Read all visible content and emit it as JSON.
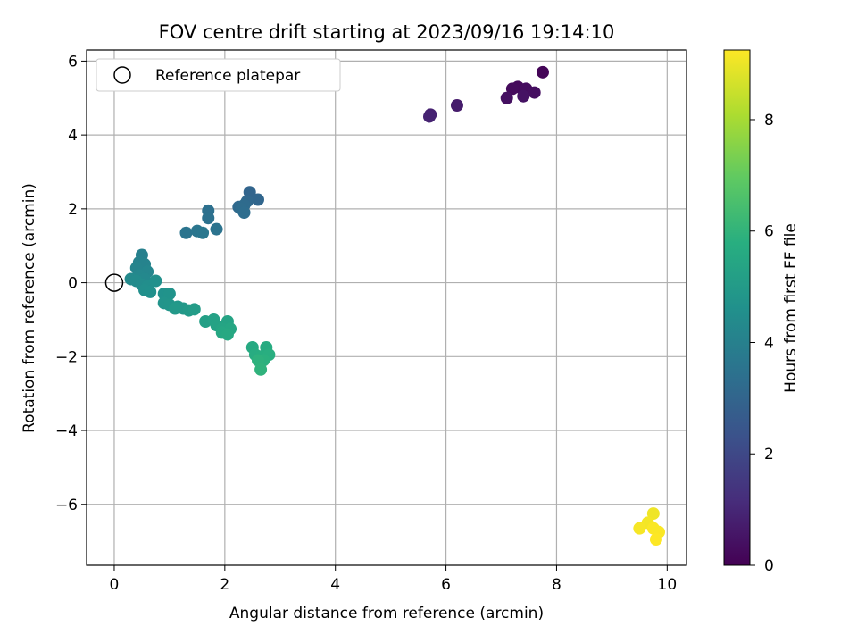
{
  "chart_data": {
    "type": "scatter",
    "title": "FOV centre drift starting at 2023/09/16 19:14:10",
    "xlabel": "Angular distance from reference (arcmin)",
    "ylabel": "Rotation from reference (arcmin)",
    "xlim": [
      -0.5,
      10.35
    ],
    "ylim": [
      -7.65,
      6.3
    ],
    "xticks": [
      0,
      2,
      4,
      6,
      8,
      10
    ],
    "yticks": [
      -6,
      -4,
      -2,
      0,
      2,
      4,
      6
    ],
    "grid": true,
    "colormap": "viridis",
    "colorbar": {
      "label": "Hours from first FF file",
      "range": [
        0,
        9.25
      ],
      "ticks": [
        0,
        2,
        4,
        6,
        8
      ]
    },
    "legend": {
      "placement": "upper-left",
      "entries": [
        "Reference platepar"
      ]
    },
    "reference": {
      "x": 0,
      "y": 0,
      "label": "Reference platepar"
    },
    "points": [
      {
        "x": 7.75,
        "y": 5.7,
        "c": 0.1
      },
      {
        "x": 7.3,
        "y": 5.3,
        "c": 0.2
      },
      {
        "x": 7.2,
        "y": 5.25,
        "c": 0.25
      },
      {
        "x": 7.45,
        "y": 5.25,
        "c": 0.3
      },
      {
        "x": 7.6,
        "y": 5.15,
        "c": 0.35
      },
      {
        "x": 7.1,
        "y": 5.0,
        "c": 0.4
      },
      {
        "x": 7.4,
        "y": 5.05,
        "c": 0.45
      },
      {
        "x": 6.2,
        "y": 4.8,
        "c": 0.7
      },
      {
        "x": 5.72,
        "y": 4.55,
        "c": 0.85
      },
      {
        "x": 5.7,
        "y": 4.5,
        "c": 0.9
      },
      {
        "x": 2.45,
        "y": 2.45,
        "c": 3.0
      },
      {
        "x": 2.6,
        "y": 2.25,
        "c": 3.05
      },
      {
        "x": 2.4,
        "y": 2.2,
        "c": 3.1
      },
      {
        "x": 2.25,
        "y": 2.05,
        "c": 3.15
      },
      {
        "x": 2.35,
        "y": 2.1,
        "c": 3.2
      },
      {
        "x": 2.3,
        "y": 2.0,
        "c": 3.25
      },
      {
        "x": 2.35,
        "y": 1.9,
        "c": 3.3
      },
      {
        "x": 1.7,
        "y": 1.95,
        "c": 3.4
      },
      {
        "x": 1.7,
        "y": 1.75,
        "c": 3.45
      },
      {
        "x": 1.85,
        "y": 1.45,
        "c": 3.5
      },
      {
        "x": 1.3,
        "y": 1.35,
        "c": 3.55
      },
      {
        "x": 1.5,
        "y": 1.4,
        "c": 3.6
      },
      {
        "x": 1.6,
        "y": 1.35,
        "c": 3.65
      },
      {
        "x": 0.5,
        "y": 0.75,
        "c": 4.0
      },
      {
        "x": 0.45,
        "y": 0.55,
        "c": 4.05
      },
      {
        "x": 0.55,
        "y": 0.5,
        "c": 4.1
      },
      {
        "x": 0.4,
        "y": 0.4,
        "c": 4.15
      },
      {
        "x": 0.6,
        "y": 0.3,
        "c": 4.2
      },
      {
        "x": 0.45,
        "y": 0.2,
        "c": 4.25
      },
      {
        "x": 0.55,
        "y": 0.1,
        "c": 4.3
      },
      {
        "x": 0.3,
        "y": 0.1,
        "c": 4.35
      },
      {
        "x": 0.4,
        "y": 0.05,
        "c": 4.4
      },
      {
        "x": 0.5,
        "y": -0.05,
        "c": 4.45
      },
      {
        "x": 0.6,
        "y": -0.1,
        "c": 4.5
      },
      {
        "x": 0.55,
        "y": -0.2,
        "c": 4.55
      },
      {
        "x": 0.65,
        "y": -0.25,
        "c": 4.6
      },
      {
        "x": 0.75,
        "y": 0.05,
        "c": 4.6
      },
      {
        "x": 0.9,
        "y": -0.3,
        "c": 4.65
      },
      {
        "x": 1.0,
        "y": -0.3,
        "c": 4.7
      },
      {
        "x": 0.9,
        "y": -0.55,
        "c": 4.75
      },
      {
        "x": 1.0,
        "y": -0.6,
        "c": 4.8
      },
      {
        "x": 1.15,
        "y": -0.65,
        "c": 4.85
      },
      {
        "x": 1.25,
        "y": -0.7,
        "c": 4.9
      },
      {
        "x": 1.1,
        "y": -0.7,
        "c": 4.95
      },
      {
        "x": 1.35,
        "y": -0.75,
        "c": 5.0
      },
      {
        "x": 1.45,
        "y": -0.72,
        "c": 5.05
      },
      {
        "x": 1.65,
        "y": -1.05,
        "c": 5.2
      },
      {
        "x": 1.8,
        "y": -1.0,
        "c": 5.25
      },
      {
        "x": 1.85,
        "y": -1.15,
        "c": 5.3
      },
      {
        "x": 2.05,
        "y": -1.05,
        "c": 5.35
      },
      {
        "x": 1.95,
        "y": -1.25,
        "c": 5.4
      },
      {
        "x": 2.1,
        "y": -1.25,
        "c": 5.45
      },
      {
        "x": 1.95,
        "y": -1.35,
        "c": 5.5
      },
      {
        "x": 2.05,
        "y": -1.4,
        "c": 5.55
      },
      {
        "x": 2.5,
        "y": -1.75,
        "c": 5.6
      },
      {
        "x": 2.75,
        "y": -1.75,
        "c": 5.65
      },
      {
        "x": 2.55,
        "y": -1.95,
        "c": 5.7
      },
      {
        "x": 2.65,
        "y": -2.0,
        "c": 5.75
      },
      {
        "x": 2.8,
        "y": -1.95,
        "c": 5.8
      },
      {
        "x": 2.7,
        "y": -2.1,
        "c": 5.85
      },
      {
        "x": 2.6,
        "y": -2.1,
        "c": 5.9
      },
      {
        "x": 2.65,
        "y": -2.35,
        "c": 5.95
      },
      {
        "x": 9.75,
        "y": -6.25,
        "c": 9.05
      },
      {
        "x": 9.65,
        "y": -6.5,
        "c": 9.1
      },
      {
        "x": 9.5,
        "y": -6.65,
        "c": 9.15
      },
      {
        "x": 9.75,
        "y": -6.65,
        "c": 9.2
      },
      {
        "x": 9.85,
        "y": -6.75,
        "c": 9.2
      },
      {
        "x": 9.8,
        "y": -6.95,
        "c": 9.25
      }
    ]
  }
}
